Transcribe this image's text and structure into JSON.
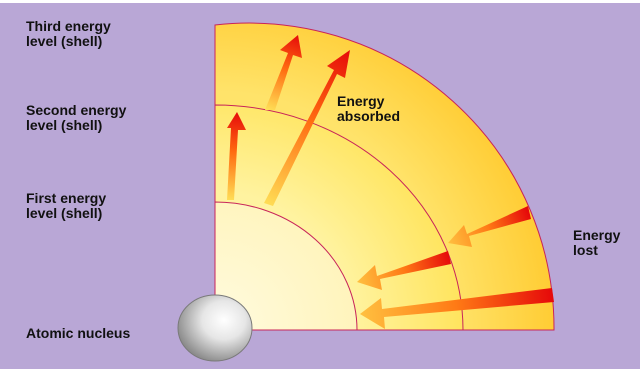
{
  "labels": {
    "third_shell": {
      "line1": "Third energy",
      "line2": "level (shell)"
    },
    "second_shell": {
      "line1": "Second energy",
      "line2": "level (shell)"
    },
    "first_shell": {
      "line1": "First energy",
      "line2": "level (shell)"
    },
    "nucleus": "Atomic nucleus",
    "absorbed": {
      "line1": "Energy",
      "line2": "absorbed"
    },
    "lost": {
      "line1": "Energy",
      "line2": "lost"
    }
  },
  "colors": {
    "background": "#b9a7d6",
    "third_shell": "#ffd447",
    "second_shell": "#ffeb73",
    "first_shell": "#fff7c4",
    "shell_border": "#c8245a",
    "arrow_absorbed": "#e01010",
    "arrow_lost": "#ff9900"
  }
}
